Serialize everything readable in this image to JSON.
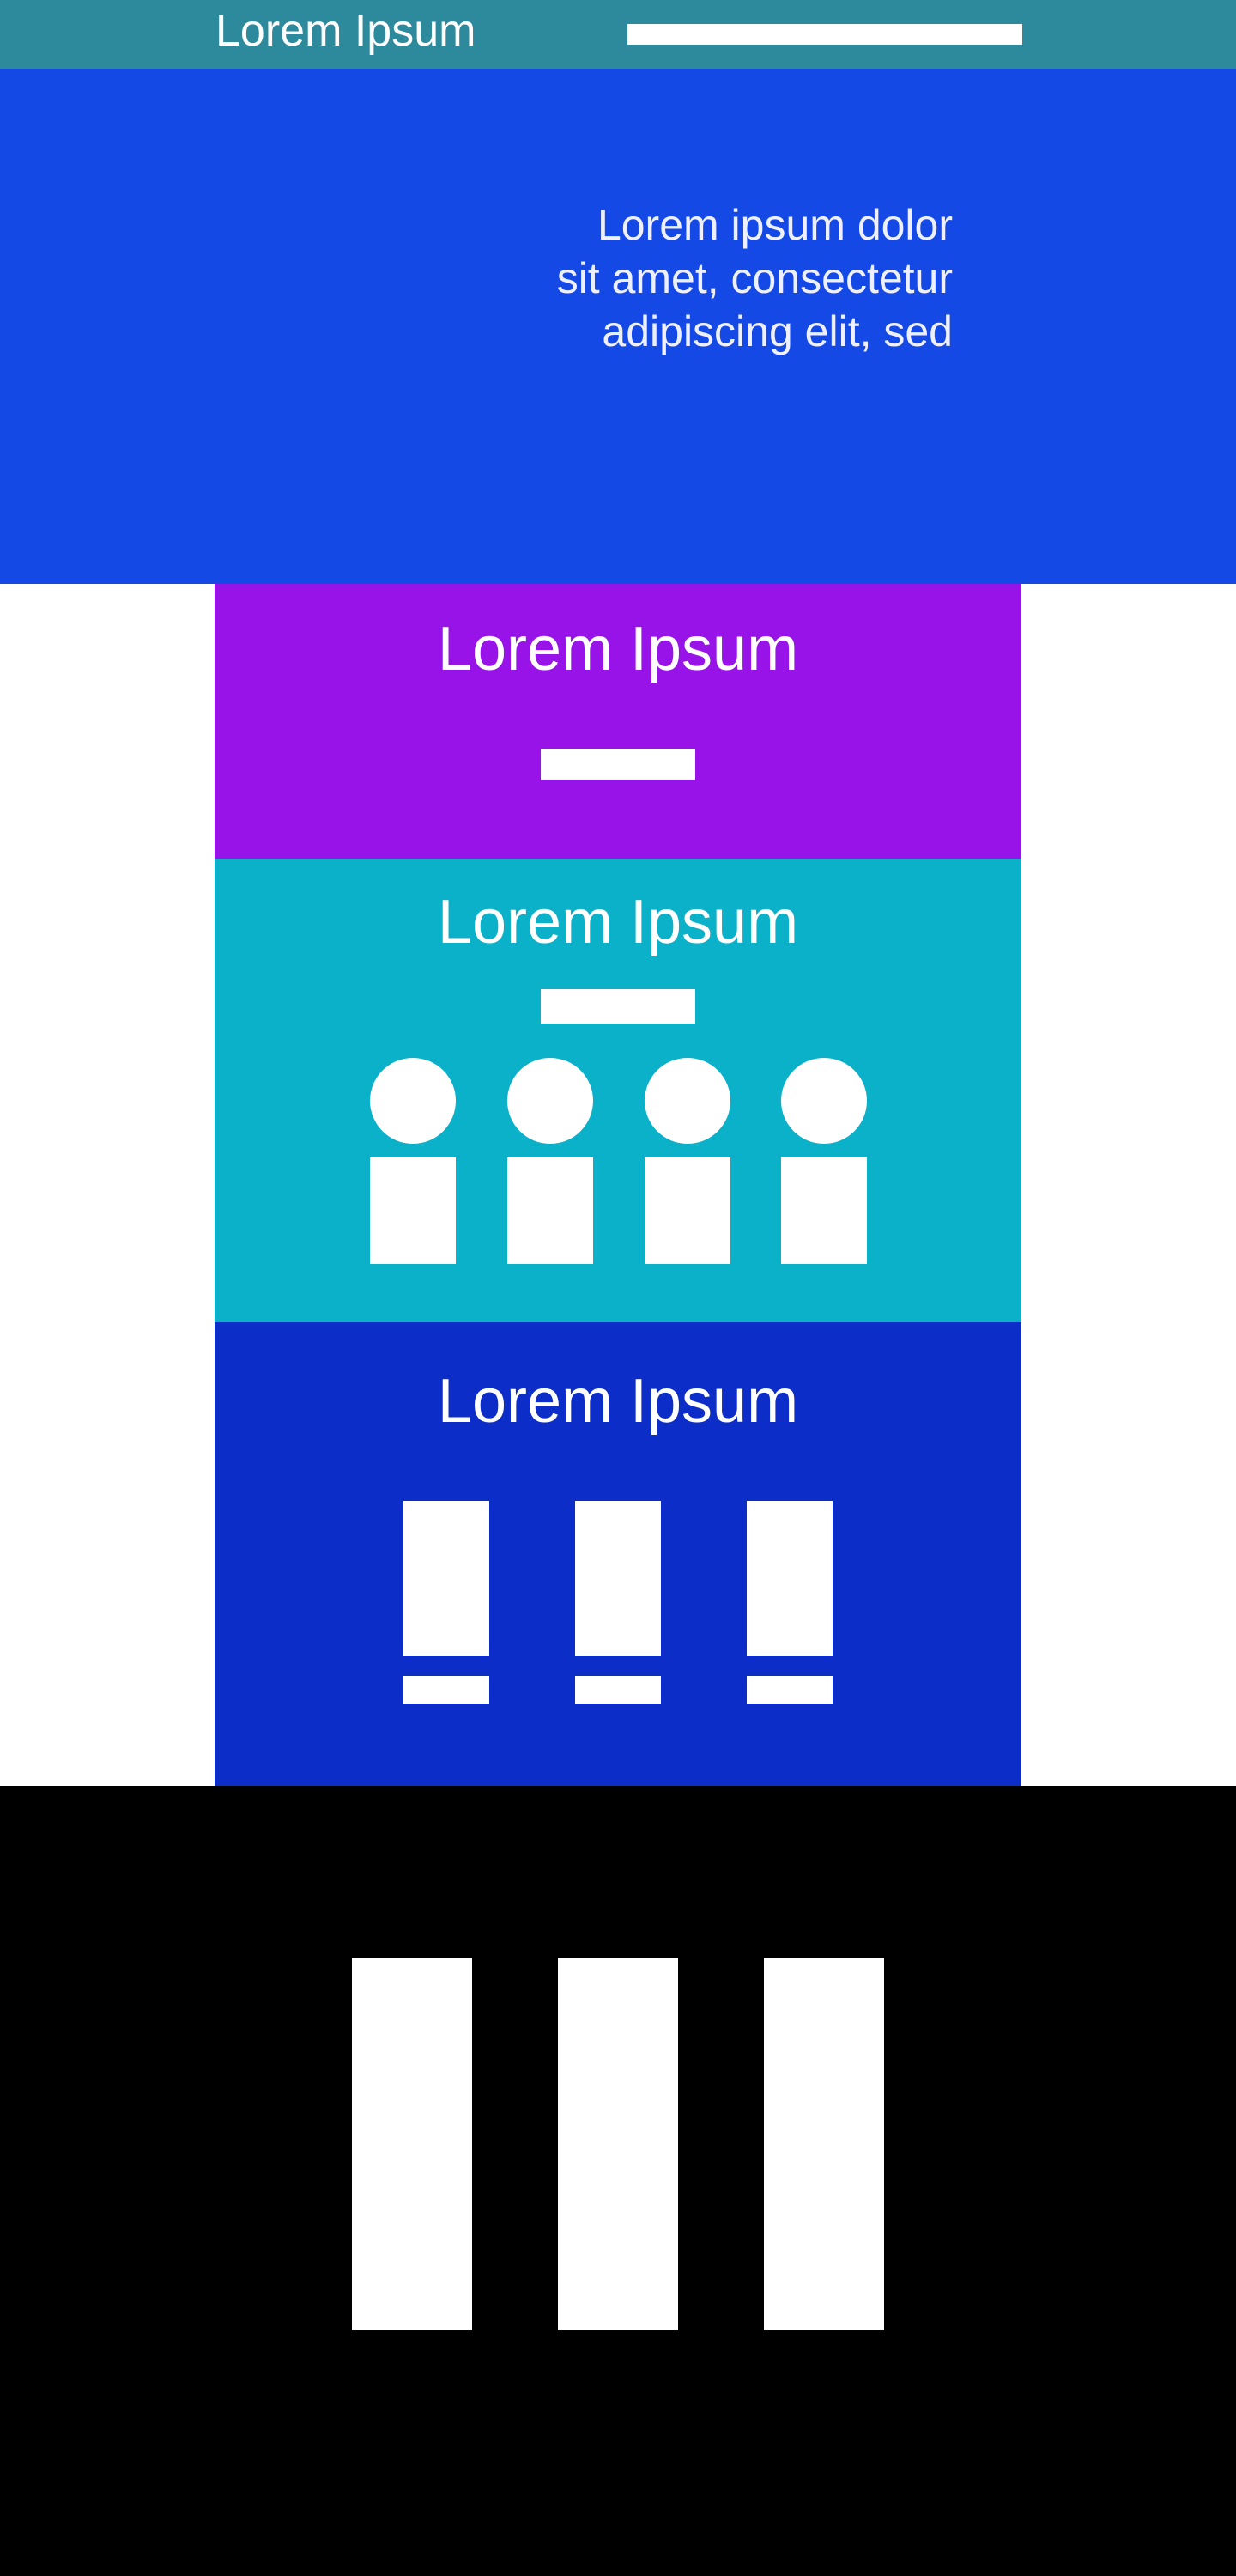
{
  "header": {
    "brand": "Lorem Ipsum",
    "background": "#2C8A9C"
  },
  "hero": {
    "text": "Lorem ipsum dolor sit amet, consectetur adipiscing elit, sed",
    "background": "#1549E6",
    "text_color": "#EEF0FF"
  },
  "sections": {
    "intro": {
      "title": "Lorem Ipsum",
      "background": "#9713E8"
    },
    "team": {
      "title": "Lorem Ipsum",
      "background": "#0BB1C8",
      "member_count": 4
    },
    "features": {
      "title": "Lorem Ipsum",
      "background": "#0C2DC8",
      "item_count": 3
    }
  },
  "footer": {
    "background": "#000000",
    "column_count": 3
  }
}
